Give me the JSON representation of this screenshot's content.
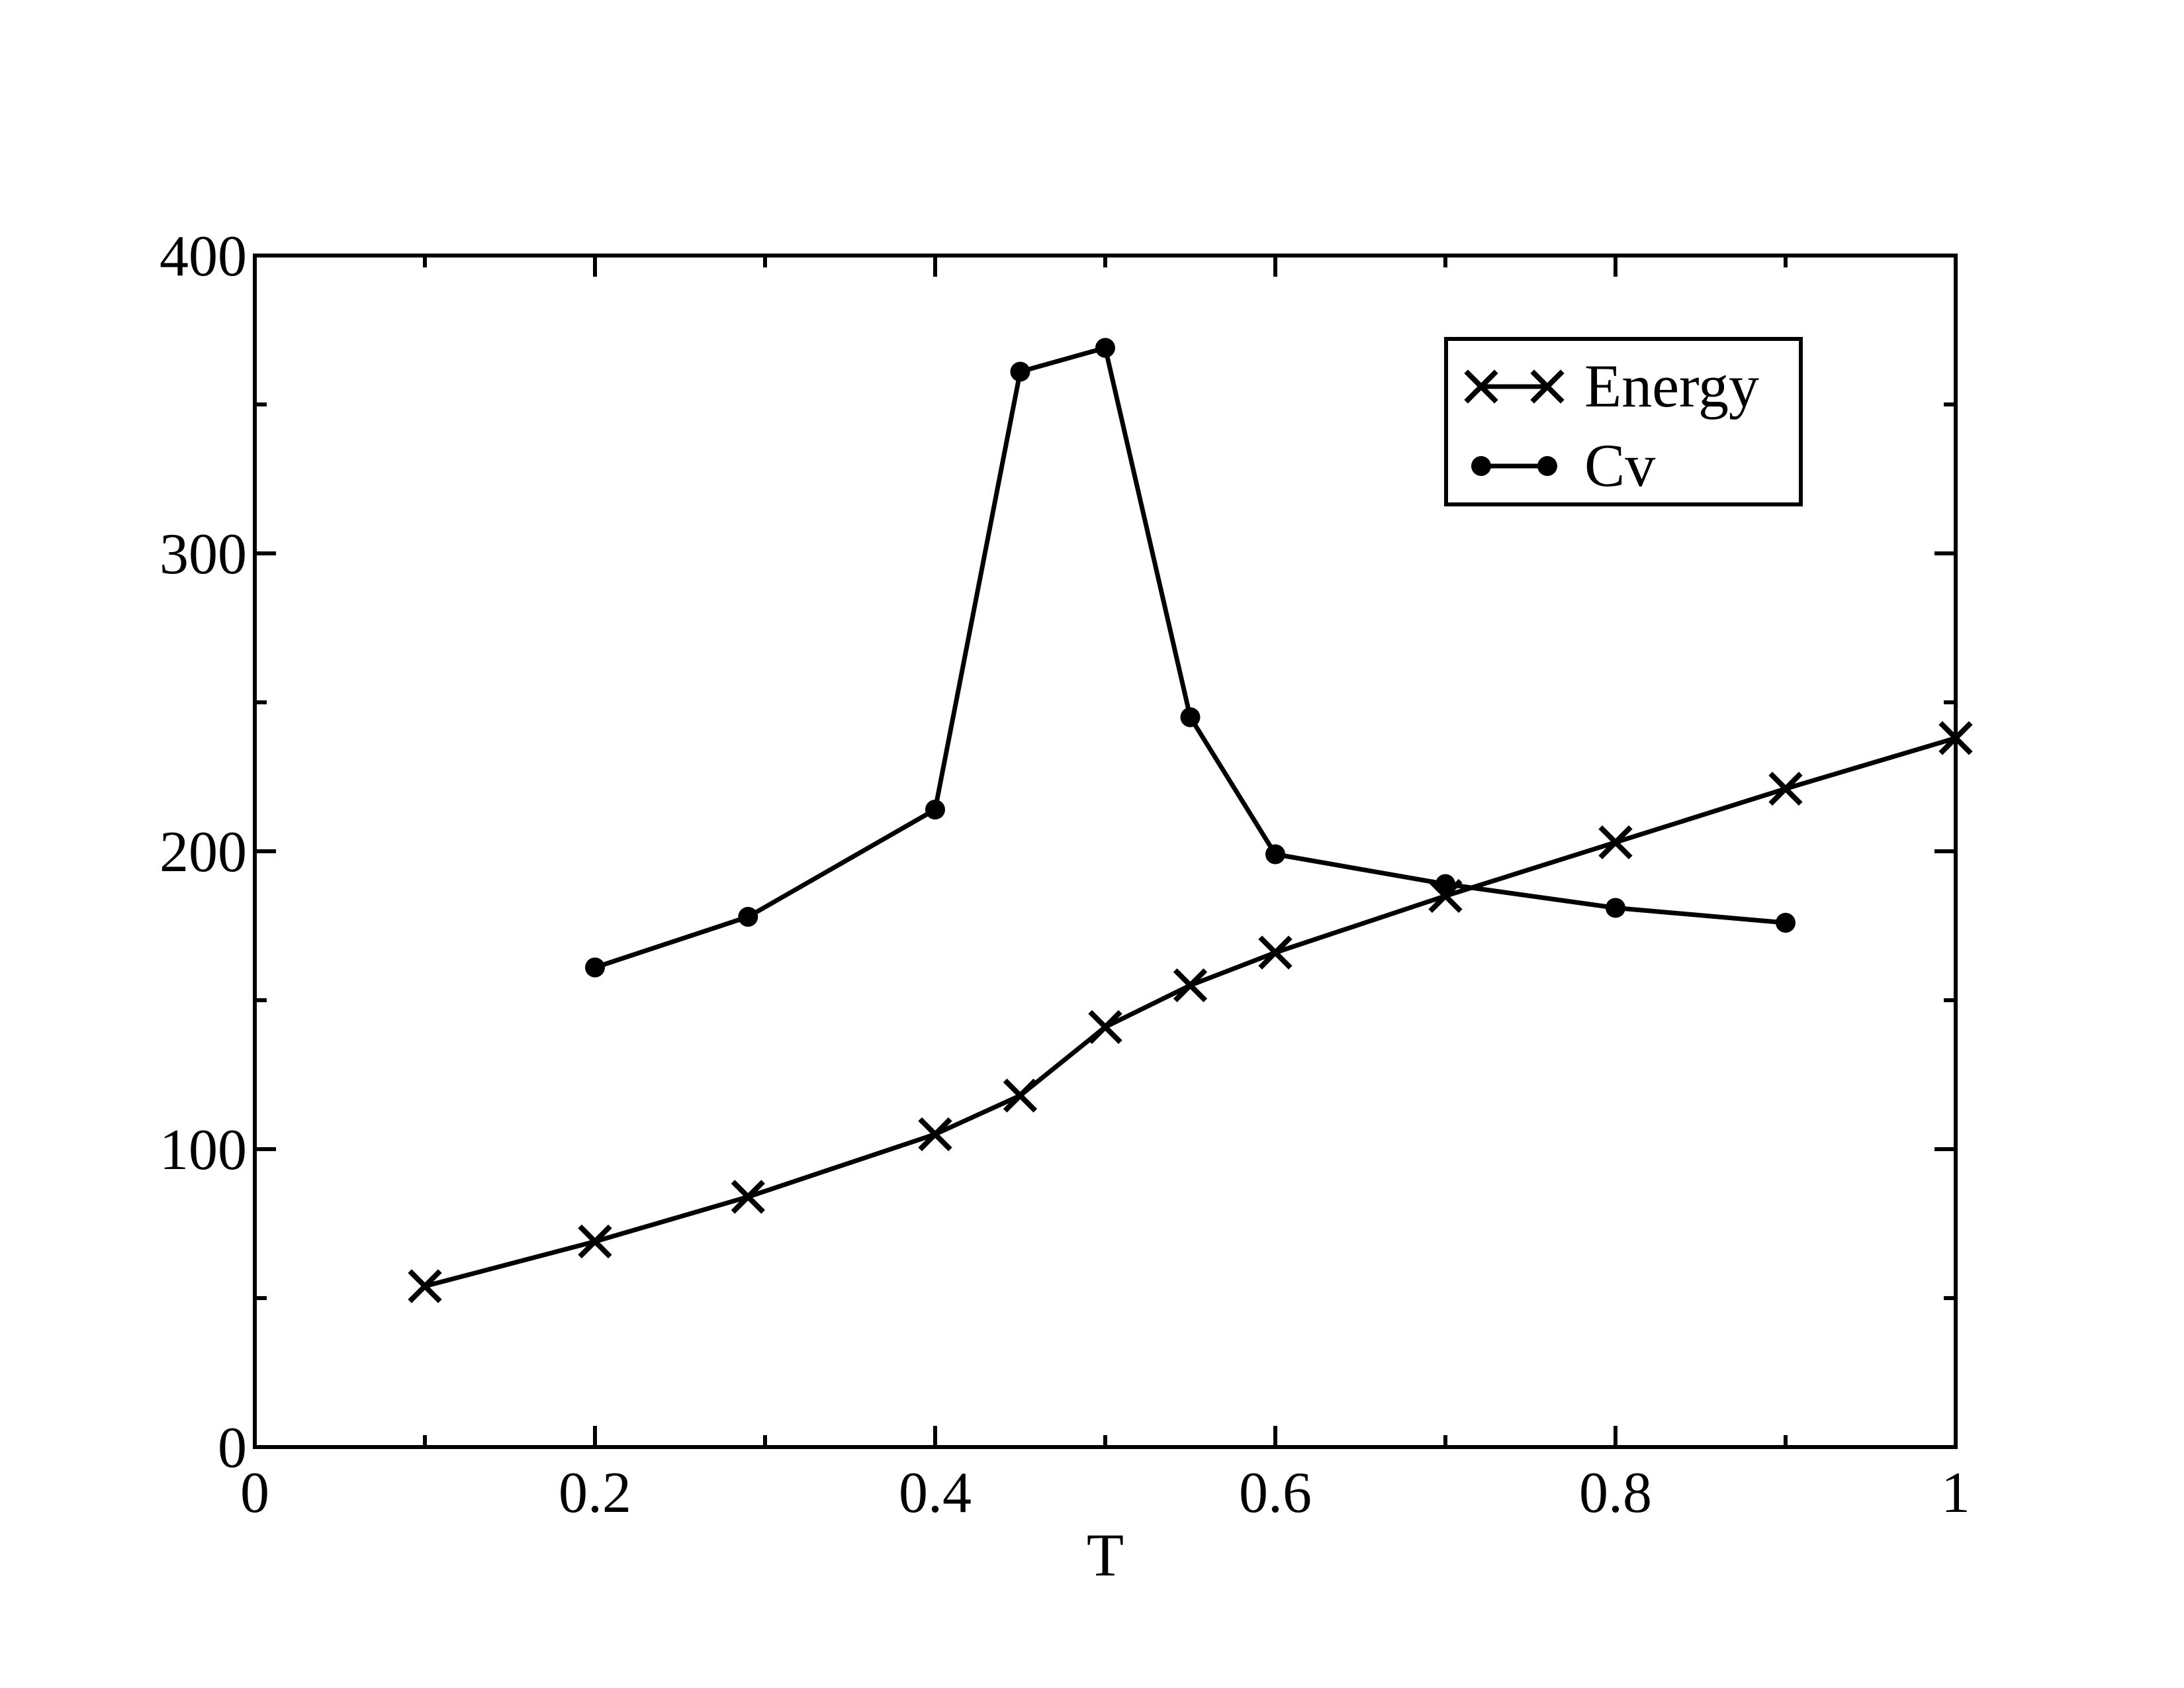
{
  "chart_data": {
    "type": "line",
    "title": "",
    "xlabel": "T",
    "ylabel": "",
    "xlim": [
      0,
      1
    ],
    "ylim": [
      0,
      400
    ],
    "x_ticks": [
      0,
      0.2,
      0.4,
      0.6,
      0.8,
      1
    ],
    "x_tick_labels": [
      "0",
      "0.2",
      "0.4",
      "0.6",
      "0.8",
      "1"
    ],
    "x_minor_ticks": [
      0.1,
      0.3,
      0.5,
      0.7,
      0.9
    ],
    "y_ticks": [
      0,
      100,
      200,
      300,
      400
    ],
    "y_tick_labels": [
      "0",
      "100",
      "200",
      "300",
      "400"
    ],
    "y_minor_ticks": [
      50,
      150,
      250,
      350
    ],
    "grid": false,
    "legend_position": "top-right",
    "series": [
      {
        "name": "Energy",
        "marker": "x",
        "color": "#000000",
        "x": [
          0.1,
          0.2,
          0.29,
          0.4,
          0.45,
          0.5,
          0.55,
          0.6,
          0.7,
          0.8,
          0.9,
          1.0
        ],
        "y": [
          54,
          69,
          84,
          105,
          118,
          141,
          155,
          166,
          185,
          203,
          221,
          238
        ]
      },
      {
        "name": "Cv",
        "marker": "circle",
        "color": "#000000",
        "x": [
          0.2,
          0.29,
          0.4,
          0.45,
          0.5,
          0.55,
          0.6,
          0.7,
          0.8,
          0.9
        ],
        "y": [
          161,
          178,
          214,
          361,
          369,
          245,
          199,
          189,
          181,
          176
        ]
      }
    ]
  }
}
